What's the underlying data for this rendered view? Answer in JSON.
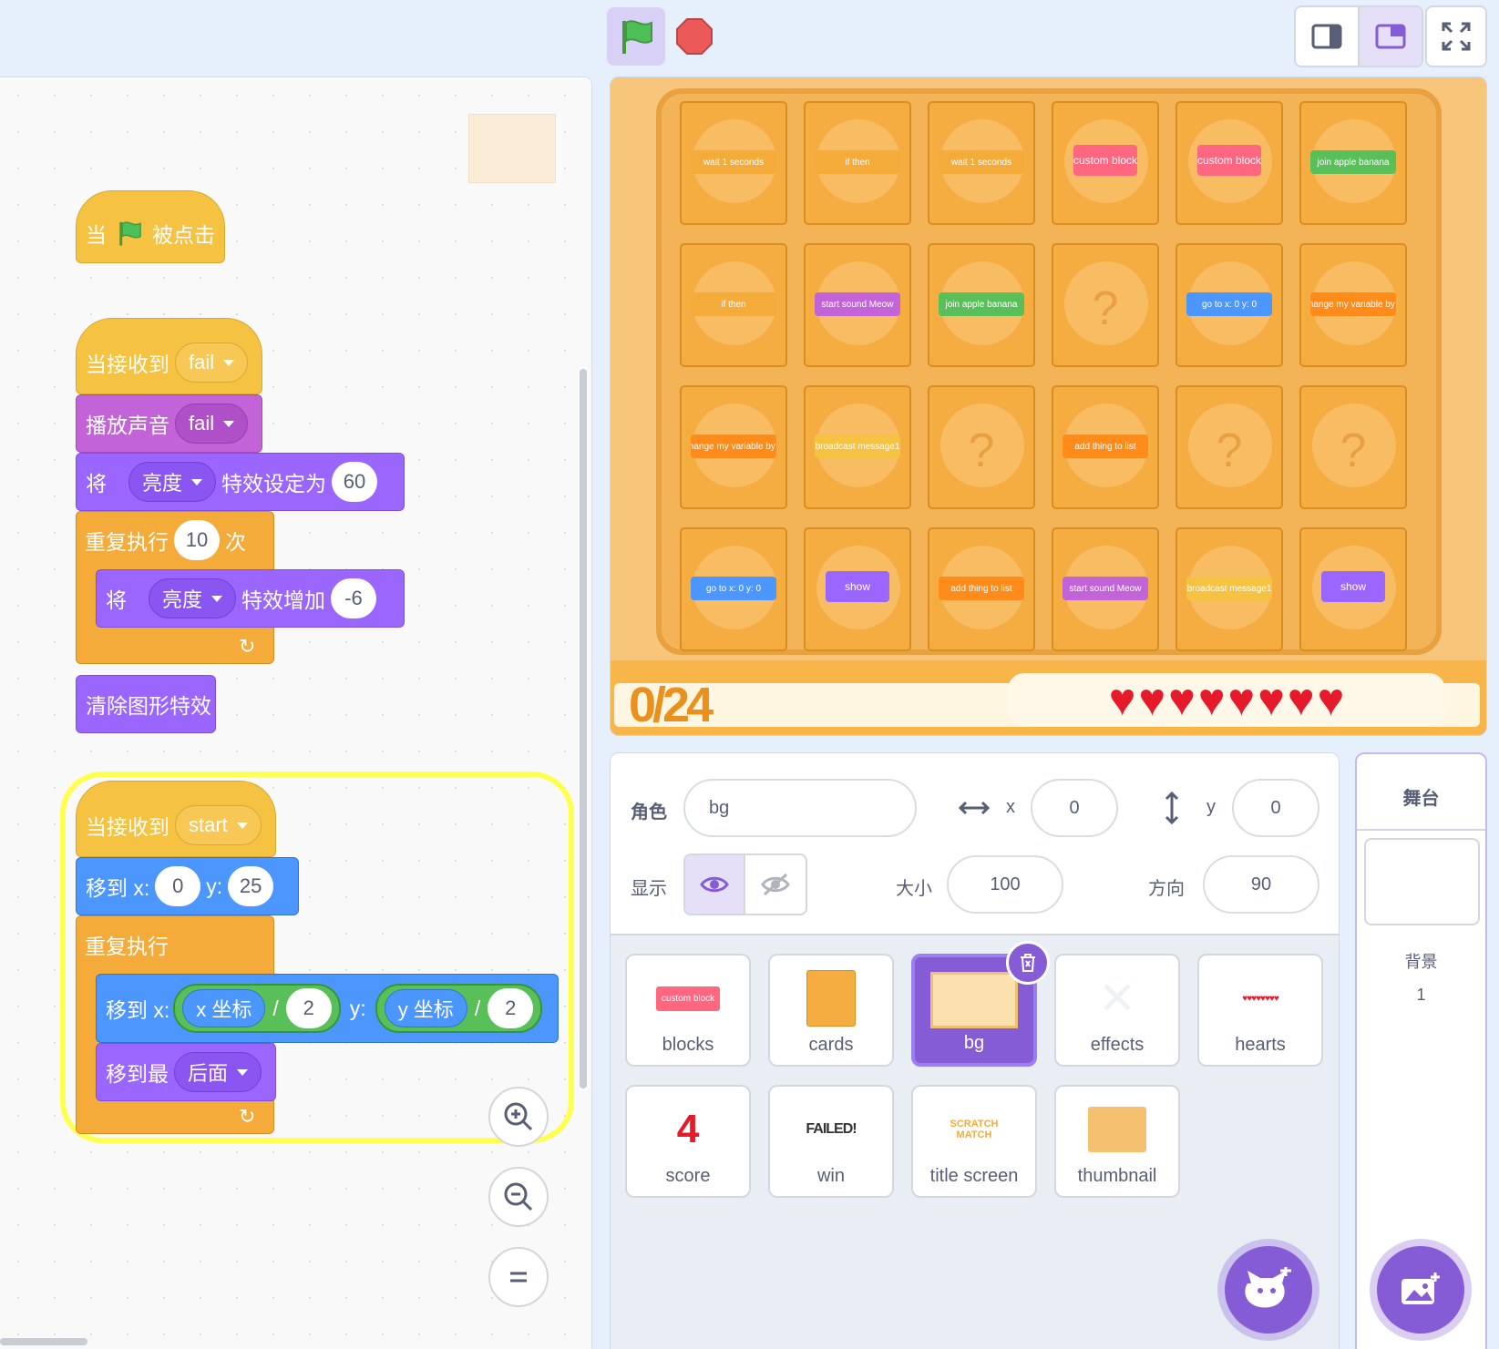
{
  "toolbar": {
    "flag_icon": "green-flag-icon",
    "stop_icon": "stop-icon",
    "layout_small": "small-stage-icon",
    "layout_normal": "normal-stage-icon",
    "fullscreen": "fullscreen-icon"
  },
  "script1": {
    "word_when": "当",
    "word_clicked": "被点击"
  },
  "script2": {
    "when_receive": "当接收到",
    "msg": "fail",
    "play_sound": "播放声音",
    "sound": "fail",
    "set": "将",
    "effect": "亮度",
    "set_to": "特效设定为",
    "set_val": "60",
    "repeat": "重复执行",
    "repeat_n": "10",
    "times": "次",
    "change": "将",
    "effect2": "亮度",
    "change_by": "特效增加",
    "change_val": "-6",
    "clear": "清除图形特效"
  },
  "script3": {
    "when_receive": "当接收到",
    "msg": "start",
    "goto": "移到 x:",
    "x": "0",
    "y_label": "y:",
    "y": "25",
    "forever": "重复执行",
    "goto2": "移到 x:",
    "xpos": "x 坐标",
    "div1": "/",
    "two1": "2",
    "y_label2": "y:",
    "ypos": "y 坐标",
    "div2": "/",
    "two2": "2",
    "goto_front": "移到最",
    "layer": "后面"
  },
  "cards": [
    [
      "wait 1 seconds",
      "if then",
      "wait 1 seconds",
      "custom block",
      "custom block",
      "join apple banana"
    ],
    [
      "if then",
      "start sound Meow",
      "join apple banana",
      "?",
      "go to x: 0 y: 0",
      "change my variable by 1"
    ],
    [
      "change my variable by 1",
      "broadcast message1",
      "?",
      "add thing to list",
      "?",
      "?"
    ],
    [
      "go to x: 0 y: 0",
      "show",
      "add thing to list",
      "start sound Meow",
      "broadcast message1",
      "show"
    ]
  ],
  "score": "0/24",
  "hearts_count": 8,
  "sprite_info": {
    "sprite_label": "角色",
    "sprite_name": "bg",
    "x_label": "x",
    "x": "0",
    "y_label": "y",
    "y": "0",
    "show_label": "显示",
    "size_label": "大小",
    "size": "100",
    "dir_label": "方向",
    "dir": "90"
  },
  "sprites": [
    {
      "name": "blocks",
      "thumb": "custom block"
    },
    {
      "name": "cards",
      "thumb": ""
    },
    {
      "name": "bg",
      "thumb": ""
    },
    {
      "name": "effects",
      "thumb": ""
    },
    {
      "name": "hearts",
      "thumb": "♥♥♥♥♥♥♥♥"
    },
    {
      "name": "score",
      "thumb": "4"
    },
    {
      "name": "win",
      "thumb": "FAILED!"
    },
    {
      "name": "title screen",
      "thumb": "SCRATCH MATCH"
    },
    {
      "name": "thumbnail",
      "thumb": ""
    }
  ],
  "stage_panel": {
    "title": "舞台",
    "backdrop_label": "背景",
    "backdrop_count": "1"
  },
  "colors": {
    "events": "#f5c242",
    "control": "#f5ab3a",
    "sound": "#c263d7",
    "looks": "#9a66ff",
    "motion": "#4c97ff",
    "accent": "#855cd6"
  }
}
